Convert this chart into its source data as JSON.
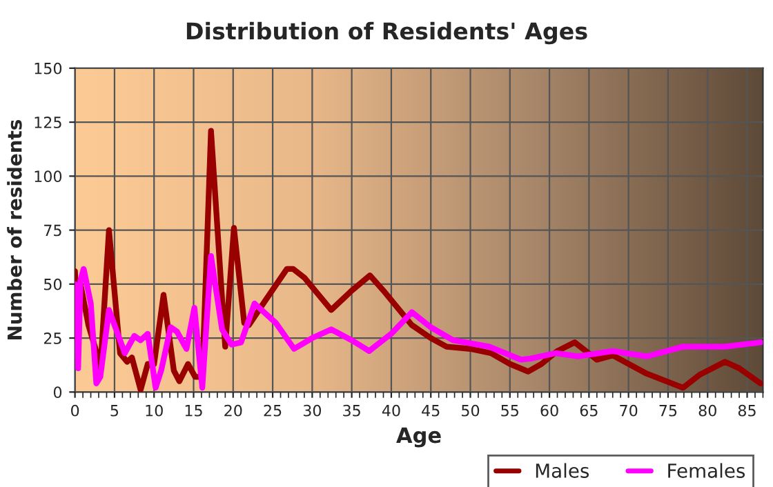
{
  "chart_data": {
    "type": "line",
    "title": "Distribution of Residents' Ages",
    "xlabel": "Age",
    "ylabel": "Number of residents",
    "xlim": [
      0,
      87
    ],
    "xticks": [
      0,
      5,
      10,
      15,
      20,
      25,
      30,
      35,
      40,
      45,
      50,
      55,
      60,
      65,
      70,
      75,
      80,
      85
    ],
    "ylim": [
      0,
      150
    ],
    "yticks": [
      0,
      25,
      50,
      75,
      100,
      125,
      150
    ],
    "grid": true,
    "legend": "bottom right",
    "marker": "none",
    "line_style": "solid",
    "series": [
      {
        "name": "Males",
        "color": "#990000",
        "x": [
          0,
          0.3,
          0.7,
          1.7,
          2.6,
          3.2,
          4.3,
          5.7,
          6.6,
          7.2,
          8.3,
          9.2,
          10,
          11.2,
          12.5,
          13.2,
          14.3,
          15.2,
          16.1,
          17.2,
          19,
          20.1,
          21.4,
          22,
          24,
          26.8,
          27.6,
          29,
          32.4,
          35,
          37.3,
          39,
          42.6,
          45,
          47,
          50,
          52.6,
          55,
          57.3,
          59,
          61,
          63.2,
          66,
          68,
          72.3,
          76.9,
          79,
          82.2,
          84,
          86.7
        ],
        "values": [
          56,
          24,
          50,
          31,
          20,
          10,
          75,
          18,
          14,
          16,
          1,
          13,
          13,
          45,
          10,
          5,
          13,
          7,
          7,
          121,
          21,
          76,
          32,
          31,
          42,
          57,
          57,
          53,
          38,
          47,
          54,
          47,
          31,
          25,
          21,
          20,
          18,
          13,
          9.5,
          13,
          19,
          23,
          15,
          17,
          8.5,
          2,
          8,
          14,
          11,
          4
        ]
      },
      {
        "name": "Females",
        "color": "#ff00ff",
        "x": [
          0,
          0.4,
          0.7,
          1.1,
          2,
          2.7,
          3.2,
          4.3,
          6.3,
          7.5,
          8.3,
          9.2,
          10.2,
          10.9,
          12.1,
          12.9,
          14.1,
          15.1,
          16.1,
          17.2,
          18.6,
          19.8,
          21,
          22.7,
          25.4,
          27.7,
          30,
          32.4,
          35,
          37.2,
          40,
          42.6,
          45,
          47.8,
          52.4,
          56.4,
          57.6,
          60.8,
          63.6,
          68,
          72.3,
          76.9,
          82.1,
          86.7
        ],
        "values": [
          50,
          11,
          52,
          57,
          41,
          4,
          7,
          38,
          18,
          26,
          24,
          27,
          2,
          10,
          30,
          28,
          20,
          39,
          2,
          63,
          29,
          22,
          23,
          41,
          32,
          20,
          25,
          29,
          24,
          19,
          27,
          37,
          30,
          24,
          21,
          15,
          15.5,
          18,
          16.5,
          19,
          16.5,
          21,
          21,
          23
        ]
      }
    ]
  }
}
